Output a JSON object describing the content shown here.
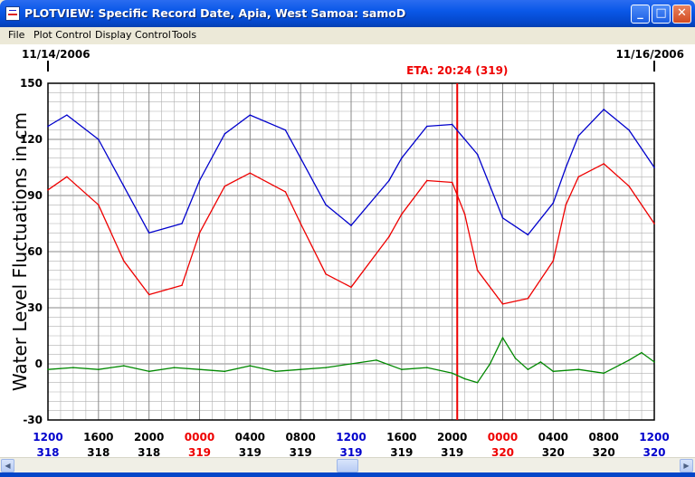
{
  "window": {
    "title": "PLOTVIEW: Specific Record Date, Apia, West Samoa: samoD",
    "buttons": {
      "minimize": "_",
      "maximize": "□",
      "close": "✕"
    }
  },
  "menu": {
    "items": [
      "File",
      "Plot Control",
      "Display Control",
      "Tools"
    ]
  },
  "plot": {
    "date_left": "11/14/2006",
    "date_right": "11/16/2006",
    "eta_label": "ETA: 20:24 (319)",
    "colors": {
      "observed": "#ee0000",
      "predicted": "#0000cc",
      "residual": "#008800",
      "eta": "#ee0000",
      "grid": "#b0b0b0"
    }
  },
  "chart_data": {
    "type": "line",
    "ylabel": "Water Level Fluctuations in cm",
    "ylim": [
      -30,
      150
    ],
    "yticks": [
      150,
      120,
      90,
      60,
      30,
      0,
      -30
    ],
    "xlim": [
      0,
      48
    ],
    "x_unit": "hours from 11/14/2006 12:00",
    "eta_x": 32.4,
    "xticks": [
      {
        "time": "1200",
        "day": "318",
        "color": "#0000cc"
      },
      {
        "time": "1600",
        "day": "318",
        "color": "#000000"
      },
      {
        "time": "2000",
        "day": "318",
        "color": "#000000"
      },
      {
        "time": "0000",
        "day": "319",
        "color": "#ee0000"
      },
      {
        "time": "0400",
        "day": "319",
        "color": "#000000"
      },
      {
        "time": "0800",
        "day": "319",
        "color": "#000000"
      },
      {
        "time": "1200",
        "day": "319",
        "color": "#0000cc"
      },
      {
        "time": "1600",
        "day": "319",
        "color": "#000000"
      },
      {
        "time": "2000",
        "day": "319",
        "color": "#000000"
      },
      {
        "time": "0000",
        "day": "320",
        "color": "#ee0000"
      },
      {
        "time": "0400",
        "day": "320",
        "color": "#000000"
      },
      {
        "time": "0800",
        "day": "320",
        "color": "#000000"
      },
      {
        "time": "1200",
        "day": "320",
        "color": "#0000cc"
      }
    ],
    "series": [
      {
        "key": "predicted",
        "x": [
          0,
          1.5,
          4,
          6,
          8,
          10.6,
          12,
          14,
          16,
          18.8,
          20,
          22,
          24,
          27,
          28,
          30,
          32,
          34,
          36,
          38,
          40,
          41,
          42,
          44,
          46,
          48
        ],
        "values": [
          127,
          133,
          120,
          95,
          70,
          75,
          98,
          123,
          133,
          125,
          110,
          85,
          74,
          98,
          110,
          127,
          128,
          112,
          78,
          69,
          86,
          105,
          122,
          136,
          125,
          105
        ]
      },
      {
        "key": "observed",
        "x": [
          0,
          1.5,
          4,
          6,
          8,
          10.6,
          12,
          14,
          16,
          18.8,
          20,
          22,
          24,
          27,
          28,
          30,
          32,
          33,
          34,
          36,
          38,
          40,
          41,
          42,
          44,
          46,
          48
        ],
        "values": [
          93,
          100,
          85,
          55,
          37,
          42,
          70,
          95,
          102,
          92,
          75,
          48,
          41,
          68,
          80,
          98,
          97,
          80,
          50,
          32,
          35,
          55,
          85,
          100,
          107,
          95,
          75
        ]
      },
      {
        "key": "residual",
        "x": [
          0,
          2,
          4,
          6,
          8,
          10,
          12,
          14,
          16,
          18,
          20,
          22,
          24,
          26,
          28,
          30,
          32,
          33,
          34,
          35,
          36,
          37,
          38,
          39,
          40,
          42,
          44,
          46,
          47,
          48
        ],
        "values": [
          -3,
          -2,
          -3,
          -1,
          -4,
          -2,
          -3,
          -4,
          -1,
          -4,
          -3,
          -2,
          0,
          2,
          -3,
          -2,
          -5,
          -8,
          -10,
          0,
          14,
          3,
          -3,
          1,
          -4,
          -3,
          -5,
          2,
          6,
          1
        ]
      }
    ]
  }
}
